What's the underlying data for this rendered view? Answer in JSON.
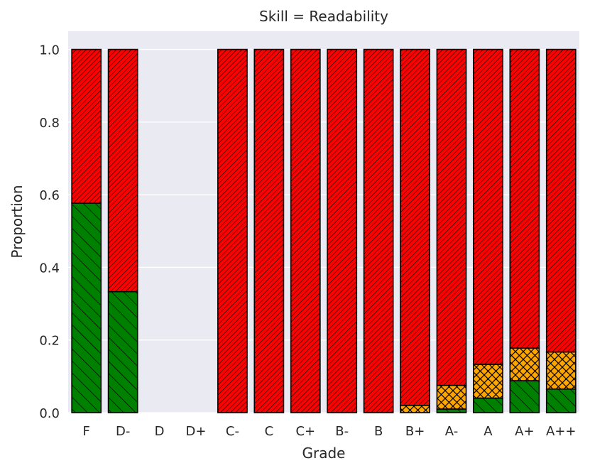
{
  "chart_data": {
    "type": "bar",
    "stacked": true,
    "title": "Skill = Readability",
    "xlabel": "Grade",
    "ylabel": "Proportion",
    "ylim": [
      0,
      1.05
    ],
    "yticks": [
      "0.0",
      "0.2",
      "0.4",
      "0.6",
      "0.8",
      "1.0"
    ],
    "grid": true,
    "legend": "none",
    "categories": [
      "F",
      "D-",
      "D",
      "D+",
      "C-",
      "C",
      "C+",
      "B-",
      "B",
      "B+",
      "A-",
      "A",
      "A+",
      "A++"
    ],
    "series": [
      {
        "name": "green",
        "color": "#008000",
        "pattern": "back-diagonal",
        "values": [
          0.577,
          0.333,
          0,
          0,
          0,
          0,
          0,
          0,
          0,
          0,
          0.01,
          0.04,
          0.088,
          0.065
        ]
      },
      {
        "name": "orange",
        "color": "#FFA500",
        "pattern": "crosshatch",
        "values": [
          0,
          0,
          0,
          0,
          0,
          0,
          0,
          0,
          0,
          0.02,
          0.065,
          0.093,
          0.09,
          0.102
        ]
      },
      {
        "name": "red",
        "color": "#FF0000",
        "pattern": "dense-diagonal",
        "values": [
          0.423,
          0.667,
          0,
          0,
          1.0,
          1.0,
          1.0,
          1.0,
          1.0,
          0.98,
          0.925,
          0.867,
          0.822,
          0.833
        ]
      }
    ]
  }
}
